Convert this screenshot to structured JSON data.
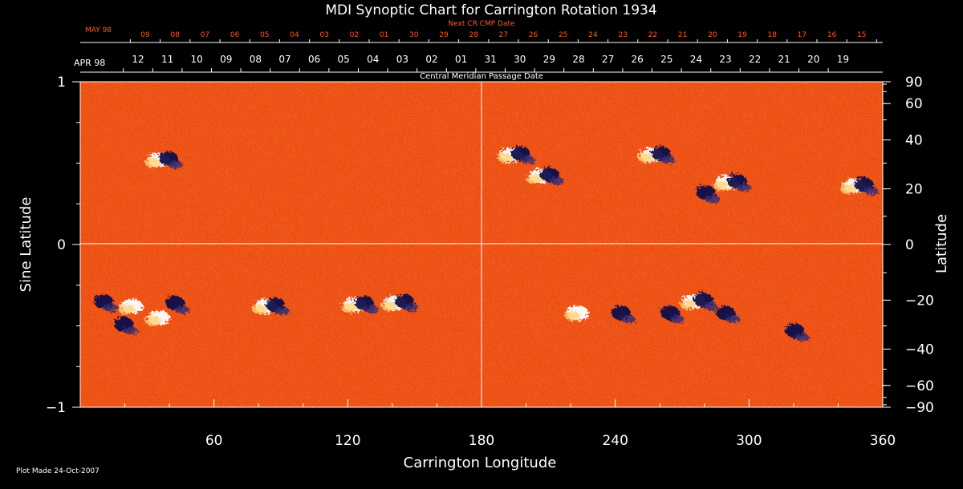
{
  "chart_data": {
    "type": "heatmap",
    "title": "MDI Synoptic Chart for Carrington Rotation 1934",
    "xlabel": "Carrington Longitude",
    "ylabel": "Sine Latitude",
    "y2label": "Latitude",
    "xlim": [
      0,
      360
    ],
    "ylim": [
      -1,
      1
    ],
    "x_ticks": [
      60,
      120,
      180,
      240,
      300,
      360
    ],
    "y_ticks": [
      -1,
      0,
      1
    ],
    "lat_ticks": [
      90,
      60,
      40,
      20,
      0,
      -20,
      -40,
      -60,
      -90
    ],
    "grid_lines": {
      "longitude": 180,
      "sine_latitude": 0
    },
    "top_axis_1": {
      "label": "Next CR CMP Date",
      "month_label": "MAY 98",
      "ticks": [
        "09",
        "08",
        "07",
        "06",
        "05",
        "04",
        "03",
        "02",
        "01",
        "30",
        "29",
        "28",
        "27",
        "26",
        "25",
        "24",
        "23",
        "22",
        "21",
        "20",
        "19",
        "18",
        "17",
        "16",
        "15"
      ]
    },
    "top_axis_2": {
      "label": "Central Meridian Passage Date",
      "month_label": "APR 98",
      "ticks": [
        "12",
        "11",
        "10",
        "09",
        "08",
        "07",
        "06",
        "05",
        "04",
        "03",
        "02",
        "01",
        "31",
        "30",
        "29",
        "28",
        "27",
        "26",
        "25",
        "24",
        "23",
        "22",
        "21",
        "20",
        "19"
      ]
    },
    "footer": "Plot Made 24-Oct-2007",
    "colors": {
      "background_field": "#ee4a10",
      "positive": "#ffffff",
      "negative": "#10104a",
      "next_cr_text": "#ff5a1e"
    },
    "active_regions": [
      {
        "lon": 37,
        "sinlat": 0.52,
        "polarity": "mixed"
      },
      {
        "lon": 25,
        "sinlat": -0.38,
        "polarity": "positive"
      },
      {
        "lon": 37,
        "sinlat": -0.45,
        "polarity": "positive"
      },
      {
        "lon": 40,
        "sinlat": -0.37,
        "polarity": "negative"
      },
      {
        "lon": 17,
        "sinlat": -0.5,
        "polarity": "negative"
      },
      {
        "lon": 8,
        "sinlat": -0.36,
        "polarity": "negative"
      },
      {
        "lon": 85,
        "sinlat": -0.38,
        "polarity": "mixed"
      },
      {
        "lon": 125,
        "sinlat": -0.37,
        "polarity": "mixed"
      },
      {
        "lon": 143,
        "sinlat": -0.36,
        "polarity": "mixed"
      },
      {
        "lon": 195,
        "sinlat": 0.55,
        "polarity": "mixed"
      },
      {
        "lon": 208,
        "sinlat": 0.42,
        "polarity": "mixed"
      },
      {
        "lon": 258,
        "sinlat": 0.55,
        "polarity": "mixed"
      },
      {
        "lon": 278,
        "sinlat": 0.31,
        "polarity": "negative"
      },
      {
        "lon": 292,
        "sinlat": 0.38,
        "polarity": "mixed"
      },
      {
        "lon": 349,
        "sinlat": 0.36,
        "polarity": "mixed"
      },
      {
        "lon": 225,
        "sinlat": -0.42,
        "polarity": "positive"
      },
      {
        "lon": 240,
        "sinlat": -0.43,
        "polarity": "negative"
      },
      {
        "lon": 262,
        "sinlat": -0.43,
        "polarity": "negative"
      },
      {
        "lon": 277,
        "sinlat": -0.35,
        "polarity": "mixed"
      },
      {
        "lon": 287,
        "sinlat": -0.43,
        "polarity": "negative"
      },
      {
        "lon": 318,
        "sinlat": -0.54,
        "polarity": "negative"
      }
    ]
  }
}
